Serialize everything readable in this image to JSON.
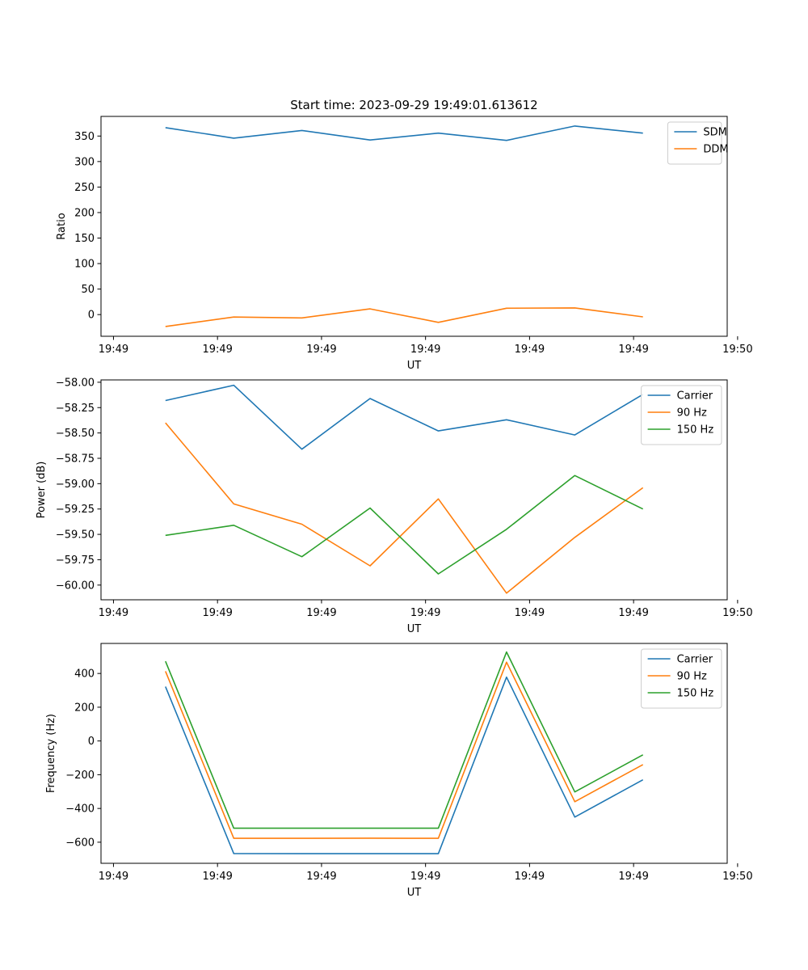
{
  "chart_data": [
    {
      "type": "line",
      "title": "Start time: 2023-09-29 19:49:01.613612",
      "xlabel": "UT",
      "ylabel": "Ratio",
      "x_tick_labels": [
        "19:49",
        "19:49",
        "19:49",
        "19:49",
        "19:49",
        "19:49",
        "19:49"
      ],
      "x_tick_label_end": "19:50",
      "y_ticks": [
        0,
        50,
        100,
        150,
        200,
        250,
        300,
        350
      ],
      "y_tick_labels": [
        "0",
        "50",
        "100",
        "150",
        "200",
        "250",
        "300",
        "350"
      ],
      "ylim": [
        -42.5,
        388.5
      ],
      "xlim_seconds": [
        0.44,
        6.46
      ],
      "x_tick_seconds": [
        0.56,
        1.56,
        2.56,
        3.56,
        4.56,
        5.56,
        6.56
      ],
      "x_seconds": [
        1.06,
        1.716,
        2.371,
        3.027,
        3.683,
        4.339,
        4.995,
        5.65
      ],
      "series": [
        {
          "name": "SDM",
          "color": "#1f77b4",
          "values": [
            366.5,
            345.8,
            361.0,
            342.3,
            355.7,
            341.5,
            369.6,
            355.7
          ]
        },
        {
          "name": "DDM",
          "color": "#ff7f0e",
          "values": [
            -23.4,
            -4.8,
            -6.6,
            11.2,
            -15.2,
            12.5,
            13.1,
            -4.5
          ]
        }
      ],
      "legend": "top-right"
    },
    {
      "type": "line",
      "title": "",
      "xlabel": "UT",
      "ylabel": "Power (dB)",
      "x_tick_labels": [
        "19:49",
        "19:49",
        "19:49",
        "19:49",
        "19:49",
        "19:49",
        "19:49"
      ],
      "x_tick_label_end": "19:50",
      "y_ticks": [
        -60.0,
        -59.75,
        -59.5,
        -59.25,
        -59.0,
        -58.75,
        -58.5,
        -58.25,
        -58.0
      ],
      "y_tick_labels": [
        "−60.00",
        "−59.75",
        "−59.50",
        "−59.25",
        "−59.00",
        "−58.75",
        "−58.50",
        "−58.25",
        "−58.00"
      ],
      "ylim": [
        -60.145,
        -57.977
      ],
      "xlim_seconds": [
        0.44,
        6.46
      ],
      "x_tick_seconds": [
        0.56,
        1.56,
        2.56,
        3.56,
        4.56,
        5.56,
        6.56
      ],
      "x_seconds": [
        1.06,
        1.716,
        2.371,
        3.027,
        3.683,
        4.339,
        4.995,
        5.65
      ],
      "series": [
        {
          "name": "Carrier",
          "color": "#1f77b4",
          "values": [
            -58.18,
            -58.03,
            -58.66,
            -58.16,
            -58.48,
            -58.37,
            -58.52,
            -58.12
          ]
        },
        {
          "name": "90 Hz",
          "color": "#ff7f0e",
          "values": [
            -58.4,
            -59.2,
            -59.4,
            -59.81,
            -59.15,
            -60.08,
            -59.53,
            -59.04
          ]
        },
        {
          "name": "150 Hz",
          "color": "#2ca02c",
          "values": [
            -59.51,
            -59.41,
            -59.72,
            -59.24,
            -59.89,
            -59.45,
            -58.92,
            -59.25
          ]
        }
      ],
      "legend": "top-right"
    },
    {
      "type": "line",
      "title": "",
      "xlabel": "UT",
      "ylabel": "Frequency (Hz)",
      "x_tick_labels": [
        "19:49",
        "19:49",
        "19:49",
        "19:49",
        "19:49",
        "19:49",
        "19:49"
      ],
      "x_tick_label_end": "19:50",
      "y_ticks": [
        -600,
        -400,
        -200,
        0,
        200,
        400
      ],
      "y_tick_labels": [
        "−600",
        "−400",
        "−200",
        "0",
        "200",
        "400"
      ],
      "ylim": [
        -725,
        578
      ],
      "xlim_seconds": [
        0.44,
        6.46
      ],
      "x_tick_seconds": [
        0.56,
        1.56,
        2.56,
        3.56,
        4.56,
        5.56,
        6.56
      ],
      "x_seconds": [
        1.06,
        1.716,
        2.371,
        3.027,
        3.683,
        4.339,
        4.995,
        5.65
      ],
      "series": [
        {
          "name": "Carrier",
          "color": "#1f77b4",
          "values": [
            322,
            -667,
            -668,
            -668,
            -668,
            378,
            -451,
            -230
          ]
        },
        {
          "name": "90 Hz",
          "color": "#ff7f0e",
          "values": [
            413,
            -577,
            -577,
            -576,
            -577,
            467,
            -360,
            -140
          ]
        },
        {
          "name": "150 Hz",
          "color": "#2ca02c",
          "values": [
            472,
            -517,
            -517,
            -517,
            -517,
            527,
            -302,
            -82
          ]
        }
      ],
      "legend": "top-right"
    }
  ]
}
